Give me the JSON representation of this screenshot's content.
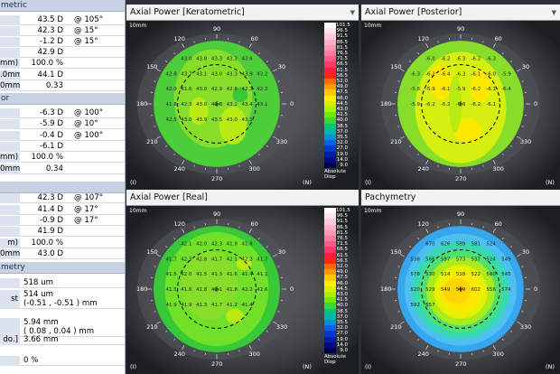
{
  "left_table": {
    "sections": [
      {
        "header": "metric",
        "rows": [
          {
            "label": "",
            "value": "43.5 D",
            "axis": "@ 105°"
          },
          {
            "label": "",
            "value": "42.3 D",
            "axis": "@ 15°"
          },
          {
            "label": "",
            "value": "-1.2 D",
            "axis": "@ 15°"
          },
          {
            "label": "",
            "value": "42.9 D",
            "axis": ""
          },
          {
            "label": "mm)",
            "value": "100.0 %",
            "axis": ""
          },
          {
            "label": ".0mm)",
            "value": "44.1 D",
            "axis": ""
          },
          {
            "label": "0mm)",
            "value": "0.33",
            "axis": ""
          }
        ]
      },
      {
        "header": "or",
        "rows": [
          {
            "label": "",
            "value": "-6.3 D",
            "axis": "@ 100°"
          },
          {
            "label": "",
            "value": "-5.9 D",
            "axis": "@ 10°"
          },
          {
            "label": "",
            "value": "-0.4 D",
            "axis": "@ 100°"
          },
          {
            "label": "",
            "value": "-6.1 D",
            "axis": ""
          },
          {
            "label": "mm)",
            "value": "100.0 %",
            "axis": ""
          },
          {
            "label": "0mm)",
            "value": "0.34",
            "axis": ""
          }
        ]
      },
      {
        "header": "",
        "rows": [
          {
            "label": "",
            "value": "42.3 D",
            "axis": "@ 107°"
          },
          {
            "label": "",
            "value": "41.4 D",
            "axis": "@ 17°"
          },
          {
            "label": "",
            "value": "-0.9 D",
            "axis": "@ 17°"
          },
          {
            "label": "",
            "value": "41.9 D",
            "axis": ""
          },
          {
            "label": "m)",
            "value": "100.0 %",
            "axis": ""
          },
          {
            "label": "0mm)",
            "value": "43.0 D",
            "axis": ""
          }
        ]
      },
      {
        "header": "metry",
        "rows": [
          {
            "label": "",
            "value": "518 um",
            "sub": ""
          },
          {
            "label": "st",
            "value": "514 um",
            "sub": "(-0.51 , -0.51 )  mm"
          },
          {
            "label": "",
            "value": "5.94 mm",
            "sub": "( 0.08 , 0.04 )  mm"
          },
          {
            "label": "do.]",
            "value": "3.66 mm",
            "sub": ""
          },
          {
            "label": "",
            "value": "0 %",
            "sub": ""
          }
        ]
      }
    ]
  },
  "panels": [
    {
      "title": "Axial Power [Keratometric]",
      "has_dropdown": true
    },
    {
      "title": "Axial Power [Posterior]",
      "has_dropdown": true
    },
    {
      "title": "Axial Power [Real]",
      "has_dropdown": false
    },
    {
      "title": "Pachymetry",
      "has_dropdown": false
    }
  ],
  "map_labels": {
    "size": "10mm",
    "deg_90": "90",
    "deg_120": "120",
    "deg_60": "60",
    "deg_150": "150",
    "deg_30": "30",
    "deg_180": "180",
    "deg_0": "0",
    "deg_210": "210",
    "deg_330": "330",
    "deg_240": "240",
    "deg_300": "300",
    "deg_270": "270",
    "left_eye_mark": "(I)",
    "right_eye_mark": "(N)",
    "dropdown_glyph": "▼"
  },
  "color_scale": {
    "values": [
      "101.5",
      "96.5",
      "91.5",
      "86.5",
      "81.5",
      "76.5",
      "71.5",
      "66.5",
      "61.5",
      "56.5",
      "52.0",
      "49.0",
      "47.5",
      "46.0",
      "44.5",
      "43.0",
      "41.5",
      "40.0",
      "38.5",
      "37.0",
      "35.5",
      "32.0",
      "27.0",
      "19.0",
      "14.0",
      "9.0"
    ],
    "colors": [
      "#ffffff",
      "#ffe4ec",
      "#ffcada",
      "#ffb0c8",
      "#ff96b4",
      "#ff7aa0",
      "#ff5a88",
      "#ff3868",
      "#ff1a40",
      "#ff2800",
      "#ff6a00",
      "#ff9a00",
      "#ffc800",
      "#ffee00",
      "#d8f000",
      "#aaf000",
      "#70e800",
      "#38d838",
      "#00c878",
      "#00b4b4",
      "#0090d8",
      "#0064e6",
      "#0038d0",
      "#001ca8",
      "#000c80",
      "#000050"
    ],
    "caption_line1": "Absolute",
    "caption_line2": "Diop"
  },
  "panel_values": {
    "kera": [
      "43.0",
      "43.8",
      "43.3",
      "43.3",
      "43.6",
      "42.8",
      "43.7",
      "43.1",
      "43.0",
      "43.3",
      "43.9",
      "43.2",
      "42.9",
      "41.6",
      "43.0",
      "42.9",
      "42.6",
      "42.3",
      "42.2",
      "41.8",
      "42.3",
      "43.0",
      "42.8",
      "43.2",
      "43.4",
      "43.1",
      "42.5",
      "43.0",
      "43.9",
      "43.5",
      "43.0",
      "43.1"
    ],
    "post": [
      "-6.0",
      "-6.2",
      "-6.3",
      "-6.2",
      "-6.3",
      "-6.3",
      "-6.2",
      "-6.4",
      "-6.3",
      "-6.1",
      "-6.0",
      "-5.9",
      "-5.8",
      "-5.9",
      "-6.1",
      "-5.9",
      "-6.2",
      "-6.1",
      "-6.4",
      "-5.9",
      "-6.2",
      "-6.2",
      "-6.3",
      "-6.2",
      "-6.1"
    ],
    "real": [
      "42.1",
      "42.0",
      "42.3",
      "41.9",
      "41.8",
      "41.7",
      "42.3",
      "42.8",
      "41.7",
      "42.1",
      "42.3",
      "41.7",
      "41.5",
      "42.0",
      "41.5",
      "41.3",
      "41.6",
      "41.4",
      "41.1",
      "41.5",
      "41.6",
      "41.8",
      "42.1",
      "41.8",
      "42.2",
      "42.6",
      "41.9",
      "41.9",
      "41.3",
      "41.7",
      "41.2",
      "41.4"
    ],
    "pachy": [
      "670",
      "626",
      "589",
      "581",
      "524",
      "538",
      "566",
      "597",
      "573",
      "537",
      "524",
      "549",
      "578",
      "530",
      "514",
      "518",
      "522",
      "580",
      "545",
      "520",
      "529",
      "549",
      "569",
      "602",
      "556",
      "574",
      "592",
      "657"
    ]
  }
}
